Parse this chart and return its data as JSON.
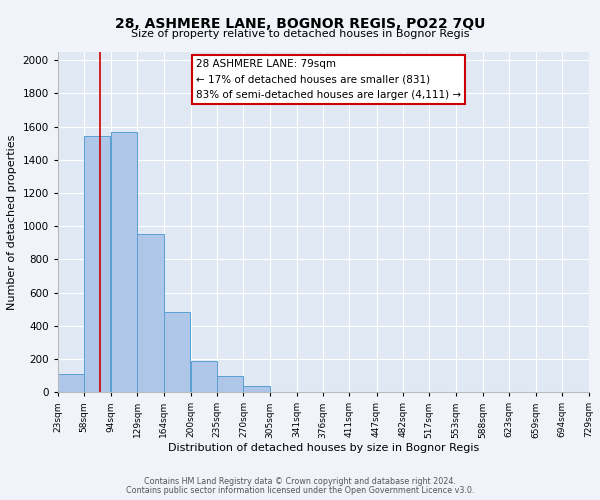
{
  "title": "28, ASHMERE LANE, BOGNOR REGIS, PO22 7QU",
  "subtitle": "Size of property relative to detached houses in Bognor Regis",
  "xlabel": "Distribution of detached houses by size in Bognor Regis",
  "ylabel": "Number of detached properties",
  "bin_labels": [
    "23sqm",
    "58sqm",
    "94sqm",
    "129sqm",
    "164sqm",
    "200sqm",
    "235sqm",
    "270sqm",
    "305sqm",
    "341sqm",
    "376sqm",
    "411sqm",
    "447sqm",
    "482sqm",
    "517sqm",
    "553sqm",
    "588sqm",
    "623sqm",
    "659sqm",
    "694sqm",
    "729sqm"
  ],
  "bar_heights": [
    110,
    1545,
    1565,
    950,
    485,
    190,
    95,
    35,
    0,
    0,
    0,
    0,
    0,
    0,
    0,
    0,
    0,
    0,
    0,
    0
  ],
  "bar_color": "#aec6e8",
  "bar_edge_color": "#5a9fd4",
  "red_line_x": 79,
  "annotation_box_text_line1": "28 ASHMERE LANE: 79sqm",
  "annotation_box_text_line2": "← 17% of detached houses are smaller (831)",
  "annotation_box_text_line3": "83% of semi-detached houses are larger (4,111) →",
  "ylim": [
    0,
    2050
  ],
  "yticks": [
    0,
    200,
    400,
    600,
    800,
    1000,
    1200,
    1400,
    1600,
    1800,
    2000
  ],
  "footer_line1": "Contains HM Land Registry data © Crown copyright and database right 2024.",
  "footer_line2": "Contains public sector information licensed under the Open Government Licence v3.0.",
  "background_color": "#f0f4fa",
  "plot_background": "#e0e8f4"
}
